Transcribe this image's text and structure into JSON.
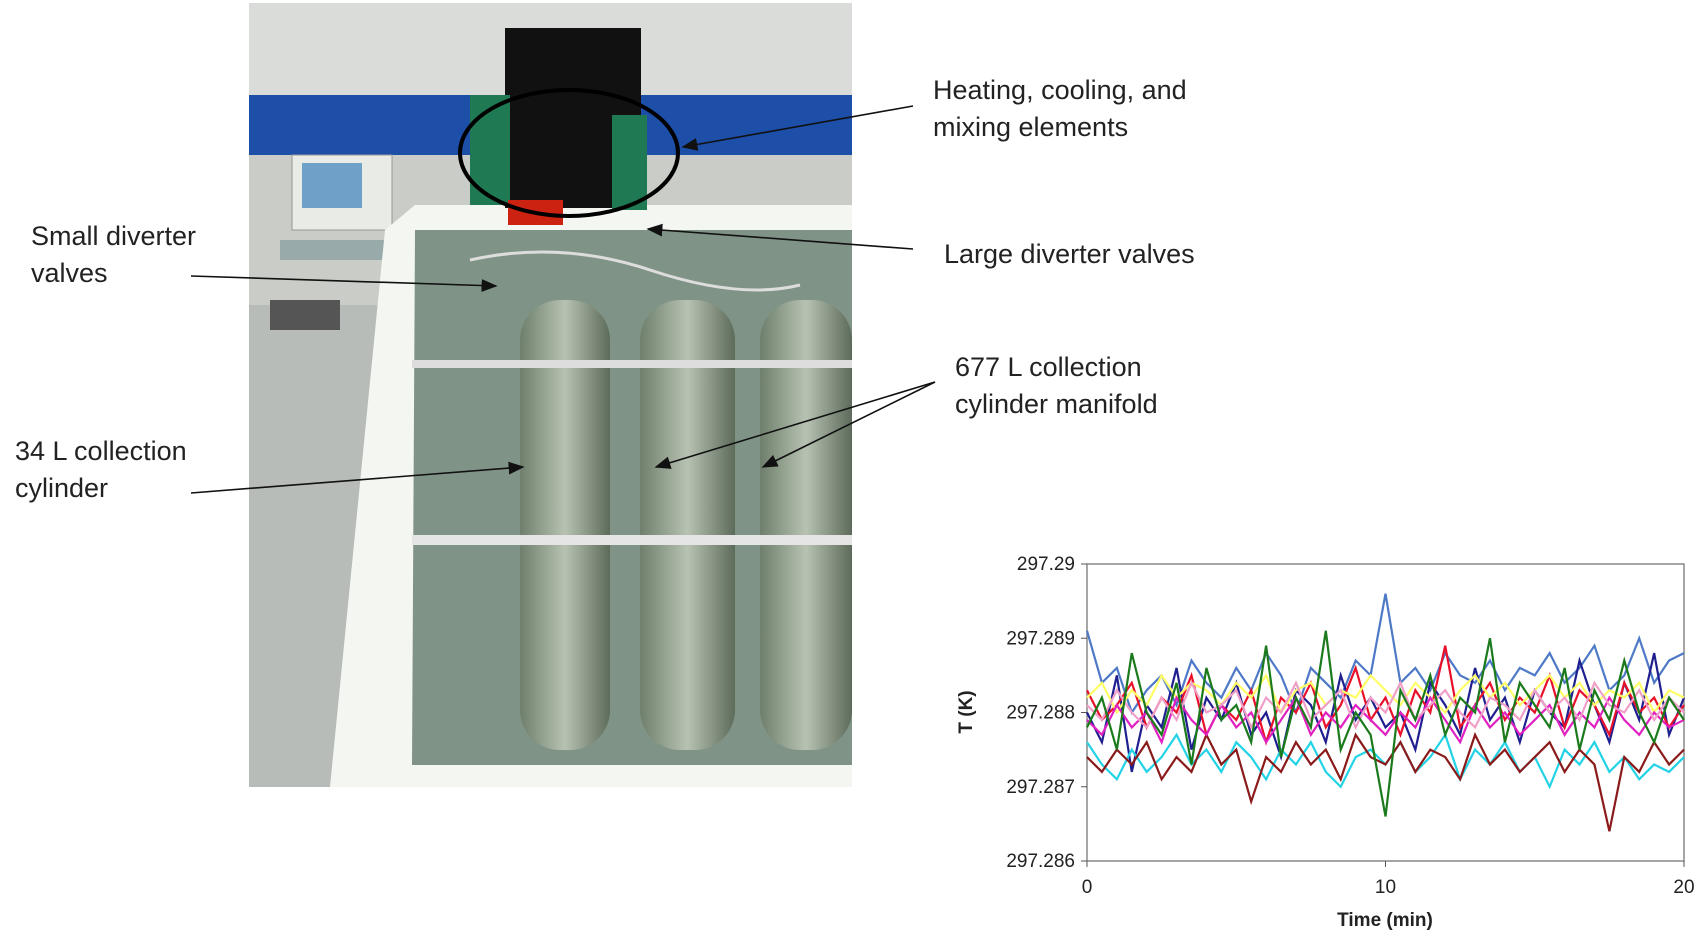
{
  "annotations": [
    {
      "lines": [
        "Heating, cooling, and",
        "mixing elements"
      ]
    },
    {
      "lines": [
        "Small diverter",
        "valves"
      ]
    },
    {
      "lines": [
        "Large diverter valves"
      ]
    },
    {
      "lines": [
        "677 L collection",
        "cylinder manifold"
      ]
    },
    {
      "lines": [
        "34 L collection",
        "cylinder"
      ]
    }
  ],
  "chart_data": {
    "type": "line",
    "xlabel": "Time (min)",
    "ylabel": "T (K)",
    "xlim": [
      0,
      20
    ],
    "ylim": [
      297.286,
      297.29
    ],
    "xticks": [
      0,
      10,
      20
    ],
    "yticks": [
      297.286,
      297.287,
      297.288,
      297.289,
      297.29
    ],
    "grid": false,
    "x": [
      0,
      0.5,
      1,
      1.5,
      2,
      2.5,
      3,
      3.5,
      4,
      4.5,
      5,
      5.5,
      6,
      6.5,
      7,
      7.5,
      8,
      8.5,
      9,
      9.5,
      10,
      10.5,
      11,
      11.5,
      12,
      12.5,
      13,
      13.5,
      14,
      14.5,
      15,
      15.5,
      16,
      16.5,
      17,
      17.5,
      18,
      18.5,
      19,
      19.5,
      20
    ],
    "series": [
      {
        "color": "#4d79c7",
        "values": [
          297.2891,
          297.2884,
          297.2886,
          297.288,
          297.2883,
          297.2885,
          297.2881,
          297.2887,
          297.2884,
          297.2882,
          297.2886,
          297.2883,
          297.2888,
          297.2885,
          297.288,
          297.2886,
          297.2884,
          297.2882,
          297.2887,
          297.2885,
          297.2896,
          297.2884,
          297.2886,
          297.2883,
          297.2888,
          297.2885,
          297.2884,
          297.2887,
          297.2883,
          297.2886,
          297.2885,
          297.2888,
          297.2884,
          297.2886,
          297.2889,
          297.2883,
          297.2885,
          297.289,
          297.2884,
          297.2887,
          297.2888
        ]
      },
      {
        "color": "#1f1f8f",
        "values": [
          297.288,
          297.2876,
          297.2885,
          297.2872,
          297.2881,
          297.2878,
          297.2886,
          297.2875,
          297.2882,
          297.2879,
          297.2884,
          297.2877,
          297.288,
          297.2874,
          297.2883,
          297.2881,
          297.2876,
          297.2885,
          297.2879,
          297.2882,
          297.2878,
          297.288,
          297.2875,
          297.2884,
          297.2881,
          297.2877,
          297.2886,
          297.2879,
          297.2882,
          297.2876,
          297.2883,
          297.288,
          297.2878,
          297.2887,
          297.2881,
          297.2876,
          297.2884,
          297.2879,
          297.2888,
          297.2877,
          297.2882
        ]
      },
      {
        "color": "#e8102a",
        "values": [
          297.2883,
          297.2879,
          297.2881,
          297.2884,
          297.2878,
          297.2882,
          297.288,
          297.2885,
          297.2877,
          297.2881,
          297.2879,
          297.2883,
          297.2876,
          297.2882,
          297.288,
          297.2884,
          297.2878,
          297.2881,
          297.2886,
          297.2879,
          297.2882,
          297.2877,
          297.2883,
          297.288,
          297.2889,
          297.2878,
          297.2881,
          297.2884,
          297.2879,
          297.2882,
          297.288,
          297.2885,
          297.2878,
          297.2883,
          297.2881,
          297.2877,
          297.2884,
          297.288,
          297.2882,
          297.2878,
          297.2881
        ]
      },
      {
        "color": "#ffff66",
        "values": [
          297.2882,
          297.2884,
          297.288,
          297.2883,
          297.2881,
          297.2885,
          297.2882,
          297.2884,
          297.2883,
          297.2881,
          297.2884,
          297.2882,
          297.2885,
          297.288,
          297.2883,
          297.2884,
          297.2881,
          297.2883,
          297.2882,
          297.2885,
          297.2883,
          297.2881,
          297.2884,
          297.2882,
          297.288,
          297.2883,
          297.2885,
          297.2882,
          297.2884,
          297.2881,
          297.2883,
          297.2885,
          297.2882,
          297.2884,
          297.2881,
          297.2883,
          297.2882,
          297.2884,
          297.288,
          297.2883,
          297.2882
        ]
      },
      {
        "color": "#22d3e6",
        "values": [
          297.2876,
          297.2873,
          297.2871,
          297.2875,
          297.2872,
          297.2874,
          297.2877,
          297.2873,
          297.2875,
          297.2872,
          297.2876,
          297.2874,
          297.2871,
          297.2875,
          297.2873,
          297.2876,
          297.2872,
          297.287,
          297.2874,
          297.2875,
          297.2873,
          297.2876,
          297.2872,
          297.2874,
          297.2877,
          297.2871,
          297.2875,
          297.2873,
          297.2876,
          297.2872,
          297.2874,
          297.287,
          297.2875,
          297.2873,
          297.2876,
          297.2872,
          297.2874,
          297.2871,
          297.2873,
          297.2872,
          297.2874
        ]
      },
      {
        "color": "#8b1a1a",
        "values": [
          297.2874,
          297.2872,
          297.2875,
          297.2873,
          297.2876,
          297.2871,
          297.2874,
          297.2872,
          297.2877,
          297.2873,
          297.2875,
          297.2868,
          297.2874,
          297.2872,
          297.2876,
          297.2873,
          297.2875,
          297.2871,
          297.2877,
          297.2874,
          297.2873,
          297.2876,
          297.2872,
          297.2875,
          297.2874,
          297.2871,
          297.2877,
          297.2873,
          297.2875,
          297.2872,
          297.2874,
          297.2876,
          297.2872,
          297.2875,
          297.2873,
          297.2864,
          297.2874,
          297.2872,
          297.2876,
          297.2873,
          297.2875
        ]
      },
      {
        "color": "#e020c0",
        "values": [
          297.2879,
          297.2877,
          297.2881,
          297.2878,
          297.288,
          297.2876,
          297.2882,
          297.2879,
          297.2877,
          297.2881,
          297.2878,
          297.288,
          297.2876,
          297.2879,
          297.2882,
          297.2877,
          297.288,
          297.2878,
          297.2881,
          297.2879,
          297.2877,
          297.288,
          297.2878,
          297.2882,
          297.2879,
          297.2876,
          297.2881,
          297.2878,
          297.288,
          297.2877,
          297.2879,
          297.2881,
          297.2877,
          297.288,
          297.2878,
          297.2882,
          297.2879,
          297.2877,
          297.288,
          297.2878,
          297.2879
        ]
      },
      {
        "color": "#f0a0c8",
        "values": [
          297.2881,
          297.2879,
          297.2883,
          297.288,
          297.2878,
          297.2882,
          297.2879,
          297.2884,
          297.288,
          297.2881,
          297.2883,
          297.2878,
          297.2882,
          297.288,
          297.2884,
          297.2879,
          297.2881,
          297.2883,
          297.2878,
          297.2882,
          297.288,
          297.2884,
          297.2879,
          297.2881,
          297.2883,
          297.288,
          297.2878,
          297.2882,
          297.2881,
          297.2879,
          297.2883,
          297.288,
          297.2882,
          297.2879,
          297.2884,
          297.2881,
          297.288,
          297.2883,
          297.2879,
          297.2882,
          297.288
        ]
      },
      {
        "color": "#1b7a1b",
        "values": [
          297.2878,
          297.2882,
          297.2875,
          297.2888,
          297.288,
          297.2877,
          297.2884,
          297.2873,
          297.2886,
          297.2879,
          297.2881,
          297.2876,
          297.2889,
          297.2874,
          297.2882,
          297.2878,
          297.2891,
          297.2875,
          297.288,
          297.2877,
          297.2866,
          297.2883,
          297.2879,
          297.2885,
          297.2877,
          297.2882,
          297.288,
          297.289,
          297.2876,
          297.2884,
          297.2881,
          297.2878,
          297.2886,
          297.2875,
          297.2883,
          297.2879,
          297.2887,
          297.288,
          297.2876,
          297.2882,
          297.2879
        ]
      }
    ]
  }
}
